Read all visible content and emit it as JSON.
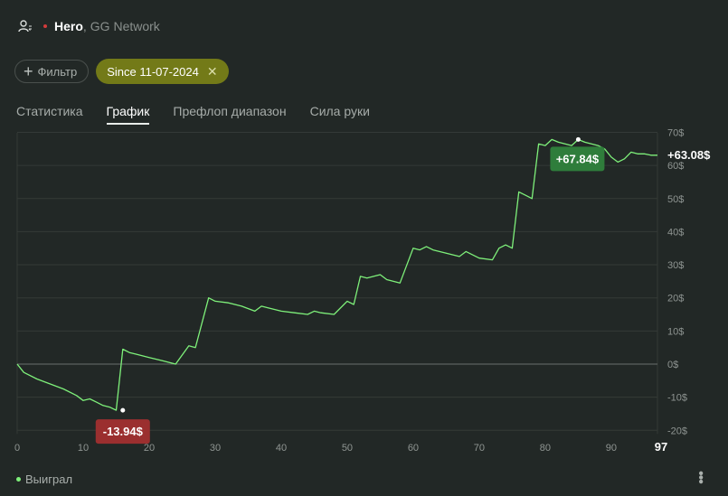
{
  "header": {
    "user_name": "Hero",
    "separator": ",",
    "network": "GG Network"
  },
  "filters": {
    "add_label": "Фильтр",
    "since_label": "Since 11-07-2024"
  },
  "tabs": [
    {
      "label": "Статистика",
      "active": false
    },
    {
      "label": "График",
      "active": true
    },
    {
      "label": "Префлоп диапазон",
      "active": false
    },
    {
      "label": "Сила руки",
      "active": false
    }
  ],
  "legend": {
    "label": "Выиграл"
  },
  "chart_data": {
    "type": "line",
    "xlim": [
      0,
      97
    ],
    "ylim": [
      -20,
      70
    ],
    "x_ticks": [
      "0",
      "10",
      "20",
      "30",
      "40",
      "50",
      "60",
      "70",
      "80",
      "90",
      "97"
    ],
    "y_ticks": [
      "70$",
      "60$",
      "50$",
      "40$",
      "30$",
      "20$",
      "10$",
      "0$",
      "-10$",
      "-20$"
    ],
    "series": [
      {
        "name": "Выиграл",
        "color": "#7ef07a",
        "x": [
          0,
          1,
          3,
          5,
          7,
          9,
          10,
          11,
          12,
          13,
          14,
          15,
          16,
          17,
          18,
          20,
          22,
          24,
          26,
          27,
          29,
          30,
          32,
          34,
          36,
          37,
          38,
          40,
          42,
          44,
          45,
          46,
          48,
          50,
          51,
          52,
          53,
          55,
          56,
          57,
          58,
          60,
          61,
          62,
          63,
          65,
          67,
          68,
          70,
          72,
          73,
          74,
          75,
          76,
          77,
          78,
          79,
          80,
          81,
          82,
          83,
          84,
          85,
          86,
          88,
          89,
          90,
          91,
          92,
          93,
          94,
          95,
          96,
          97
        ],
        "y": [
          0,
          -2.5,
          -4.5,
          -6,
          -7.5,
          -9.5,
          -11,
          -10.5,
          -11.5,
          -12.5,
          -13,
          -13.94,
          4.5,
          3.5,
          3,
          2,
          1,
          0,
          5.5,
          5,
          20,
          19,
          18.5,
          17.5,
          16,
          17.5,
          17,
          16,
          15.5,
          15,
          16,
          15.5,
          15,
          19,
          18,
          26.5,
          26,
          27,
          25.5,
          25,
          24.5,
          35,
          34.5,
          35.5,
          34.5,
          33.5,
          32.5,
          34,
          32,
          31.5,
          35,
          36,
          35,
          52,
          51,
          50,
          66.5,
          66,
          67.84,
          67,
          66.5,
          66,
          67.84,
          67,
          66,
          65,
          62.5,
          61,
          62,
          64,
          63.5,
          63.5,
          63.08,
          63.08
        ]
      }
    ],
    "annotations": [
      {
        "label": "-13.94$",
        "x": 16,
        "y": -13.94,
        "kind": "min"
      },
      {
        "label": "+67.84$",
        "x": 85,
        "y": 67.84,
        "kind": "max"
      },
      {
        "label": "+63.08$",
        "x": 97,
        "y": 63.08,
        "kind": "last"
      }
    ],
    "grid": true
  }
}
